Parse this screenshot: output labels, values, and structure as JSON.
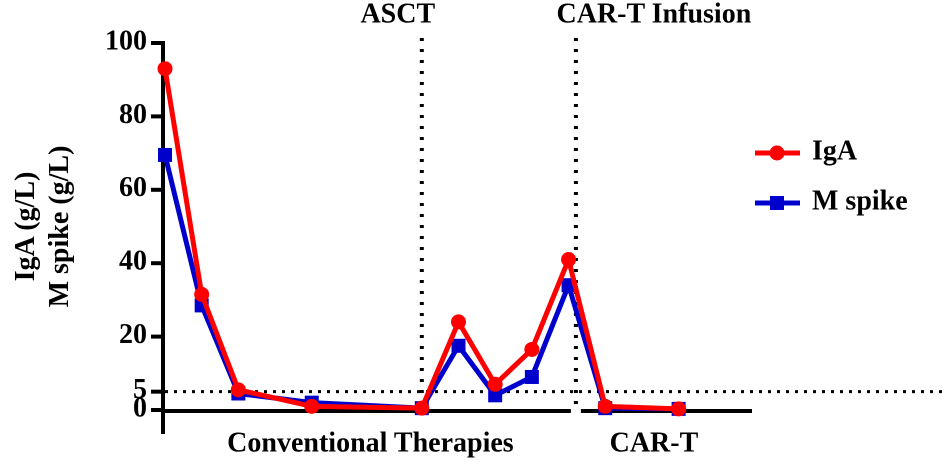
{
  "chart_data": {
    "type": "line",
    "y_label_lines": [
      "IgA (g/L)",
      "M spike (g/L)"
    ],
    "x": [
      0,
      1,
      2,
      4,
      7,
      8,
      9,
      10,
      11,
      12,
      14
    ],
    "xlim": [
      0,
      16
    ],
    "ylim": [
      0,
      100
    ],
    "yticks": [
      0,
      5,
      20,
      40,
      60,
      80,
      100
    ],
    "series": [
      {
        "name": "IgA",
        "color": "#ff0000",
        "marker": "circle",
        "values": [
          93,
          31.5,
          5.5,
          1,
          0.5,
          24,
          7,
          16.5,
          41,
          1,
          0.3
        ]
      },
      {
        "name": "M spike",
        "color": "#0000cc",
        "marker": "square",
        "values": [
          69.5,
          28.5,
          4.5,
          2,
          0.5,
          17.5,
          4,
          9,
          34,
          0.5,
          0.3
        ]
      }
    ],
    "vlines": [
      {
        "x": 7,
        "label": "ASCT"
      },
      {
        "x": 11.2,
        "label": "CAR-T Infusion"
      }
    ],
    "hline": 5,
    "regions": [
      {
        "from": 0,
        "to": 11.2,
        "label": "Conventional Therapies"
      },
      {
        "from": 11.2,
        "to": 16,
        "label": "CAR-T"
      }
    ],
    "legend": "right"
  }
}
